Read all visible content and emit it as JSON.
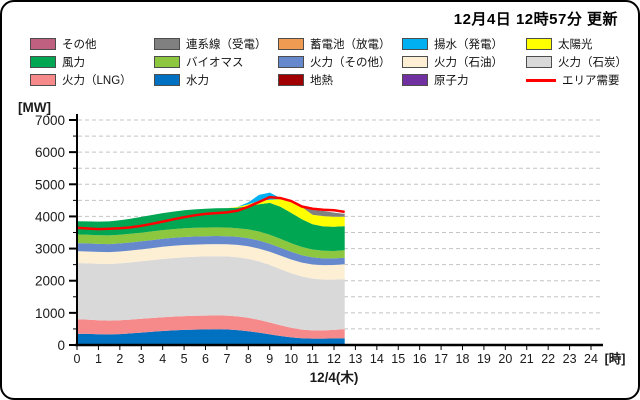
{
  "header": {
    "updated": "12月4日 12時57分 更新"
  },
  "legend": {
    "items": [
      {
        "label": "その他",
        "color": "#C06080",
        "type": "box"
      },
      {
        "label": "連系線（受電）",
        "color": "#808080",
        "type": "box"
      },
      {
        "label": "蓄電池（放電）",
        "color": "#EF9B52",
        "type": "box"
      },
      {
        "label": "揚水（発電）",
        "color": "#00B0F0",
        "type": "box"
      },
      {
        "label": "太陽光",
        "color": "#FFFF00",
        "type": "box"
      },
      {
        "label": "風力",
        "color": "#00A651",
        "type": "box"
      },
      {
        "label": "バイオマス",
        "color": "#8DC63F",
        "type": "box"
      },
      {
        "label": "火力（その他）",
        "color": "#6688CC",
        "type": "box"
      },
      {
        "label": "火力（石油）",
        "color": "#FCEFD4",
        "type": "box"
      },
      {
        "label": "火力（石炭）",
        "color": "#D9D9D9",
        "type": "box"
      },
      {
        "label": "火力（LNG）",
        "color": "#F68A8B",
        "type": "box"
      },
      {
        "label": "水力",
        "color": "#0070C0",
        "type": "box"
      },
      {
        "label": "地熱",
        "color": "#A00000",
        "type": "box"
      },
      {
        "label": "原子力",
        "color": "#7030A0",
        "type": "box"
      },
      {
        "label": "エリア需要",
        "color": "#FF0000",
        "type": "line"
      }
    ]
  },
  "chart_data": {
    "type": "area",
    "stacked": true,
    "unit_label": "[MW]",
    "x_unit_label": "[時]",
    "date_label": "12/4(木)",
    "xlim": [
      0,
      24
    ],
    "ylim": [
      0,
      7000
    ],
    "x_ticks": [
      0,
      1,
      2,
      3,
      4,
      5,
      6,
      7,
      8,
      9,
      10,
      11,
      12,
      13,
      14,
      15,
      16,
      17,
      18,
      19,
      20,
      21,
      22,
      23,
      24
    ],
    "y_ticks": [
      0,
      1000,
      2000,
      3000,
      4000,
      5000,
      6000,
      7000
    ],
    "y_minor_step": 500,
    "grid": "horizontal-dashed",
    "x": [
      0,
      0.5,
      1,
      1.5,
      2,
      2.5,
      3,
      3.5,
      4,
      4.5,
      5,
      5.5,
      6,
      6.5,
      7,
      7.5,
      8,
      8.5,
      9,
      9.5,
      10,
      10.5,
      11,
      11.5,
      12,
      12.5
    ],
    "series": [
      {
        "name": "原子力",
        "color": "#7030A0",
        "values": [
          0,
          0,
          0,
          0,
          0,
          0,
          0,
          0,
          0,
          0,
          0,
          0,
          0,
          0,
          0,
          0,
          0,
          0,
          0,
          0,
          0,
          0,
          0,
          0,
          0,
          0
        ]
      },
      {
        "name": "地熱",
        "color": "#A00000",
        "values": [
          0,
          0,
          0,
          0,
          0,
          0,
          0,
          0,
          0,
          0,
          0,
          0,
          0,
          0,
          0,
          0,
          0,
          0,
          0,
          0,
          0,
          0,
          0,
          0,
          0,
          0
        ]
      },
      {
        "name": "水力",
        "color": "#0070C0",
        "values": [
          350,
          345,
          335,
          330,
          340,
          360,
          385,
          410,
          435,
          455,
          470,
          480,
          485,
          490,
          485,
          465,
          430,
          385,
          330,
          280,
          235,
          210,
          200,
          200,
          205,
          210
        ]
      },
      {
        "name": "火力（LNG）",
        "color": "#F68A8B",
        "values": [
          450,
          445,
          435,
          430,
          430,
          430,
          430,
          430,
          430,
          430,
          430,
          430,
          430,
          430,
          430,
          425,
          415,
          395,
          370,
          335,
          300,
          270,
          255,
          255,
          265,
          285
        ]
      },
      {
        "name": "火力（石炭）",
        "color": "#D9D9D9",
        "values": [
          1750,
          1750,
          1755,
          1760,
          1770,
          1780,
          1790,
          1800,
          1810,
          1820,
          1830,
          1835,
          1840,
          1840,
          1840,
          1840,
          1835,
          1820,
          1790,
          1745,
          1695,
          1650,
          1610,
          1580,
          1565,
          1555
        ]
      },
      {
        "name": "火力（石油）",
        "color": "#FCEFD4",
        "values": [
          370,
          370,
          370,
          370,
          370,
          370,
          370,
          375,
          380,
          380,
          380,
          380,
          380,
          380,
          380,
          385,
          390,
          400,
          410,
          420,
          430,
          435,
          440,
          450,
          455,
          460
        ]
      },
      {
        "name": "火力（その他）",
        "color": "#6688CC",
        "values": [
          250,
          250,
          250,
          250,
          250,
          250,
          250,
          250,
          250,
          250,
          250,
          250,
          250,
          250,
          250,
          250,
          250,
          250,
          250,
          245,
          240,
          230,
          220,
          210,
          205,
          205
        ]
      },
      {
        "name": "バイオマス",
        "color": "#8DC63F",
        "values": [
          270,
          270,
          270,
          270,
          270,
          270,
          270,
          270,
          270,
          270,
          270,
          270,
          270,
          270,
          270,
          270,
          275,
          280,
          280,
          275,
          265,
          255,
          245,
          235,
          230,
          230
        ]
      },
      {
        "name": "風力",
        "color": "#00A651",
        "values": [
          410,
          415,
          425,
          435,
          450,
          470,
          490,
          510,
          530,
          545,
          560,
          575,
          585,
          595,
          605,
          640,
          720,
          850,
          990,
          1000,
          945,
          860,
          785,
          760,
          755,
          755
        ]
      },
      {
        "name": "太陽光",
        "color": "#FFFF00",
        "values": [
          0,
          0,
          0,
          0,
          0,
          0,
          0,
          0,
          0,
          0,
          0,
          0,
          0,
          0,
          0,
          20,
          60,
          100,
          100,
          240,
          330,
          380,
          300,
          320,
          310,
          290
        ]
      },
      {
        "name": "揚水（発電）",
        "color": "#00B0F0",
        "values": [
          0,
          0,
          0,
          0,
          0,
          0,
          0,
          0,
          0,
          0,
          0,
          0,
          0,
          0,
          0,
          0,
          60,
          190,
          220,
          30,
          0,
          0,
          0,
          0,
          0,
          0
        ]
      },
      {
        "name": "蓄電池（放電）",
        "color": "#EF9B52",
        "values": [
          0,
          0,
          0,
          0,
          0,
          0,
          0,
          0,
          0,
          0,
          0,
          0,
          0,
          0,
          0,
          0,
          0,
          0,
          0,
          0,
          0,
          0,
          0,
          0,
          0,
          0
        ]
      },
      {
        "name": "連系線（受電）",
        "color": "#808080",
        "values": [
          0,
          0,
          0,
          0,
          0,
          0,
          0,
          0,
          0,
          0,
          0,
          0,
          0,
          0,
          0,
          0,
          0,
          0,
          0,
          0,
          20,
          60,
          150,
          160,
          130,
          90
        ]
      },
      {
        "name": "その他",
        "color": "#C06080",
        "values": [
          0,
          0,
          0,
          0,
          0,
          0,
          0,
          0,
          0,
          0,
          0,
          0,
          0,
          0,
          0,
          0,
          0,
          0,
          0,
          0,
          0,
          0,
          0,
          0,
          0,
          0
        ]
      }
    ],
    "line_series": {
      "name": "エリア需要",
      "color": "#FF0000",
      "values": [
        3650,
        3625,
        3605,
        3615,
        3630,
        3660,
        3710,
        3770,
        3840,
        3910,
        3975,
        4035,
        4080,
        4105,
        4125,
        4180,
        4300,
        4450,
        4600,
        4570,
        4480,
        4310,
        4240,
        4210,
        4190,
        4140
      ]
    }
  }
}
